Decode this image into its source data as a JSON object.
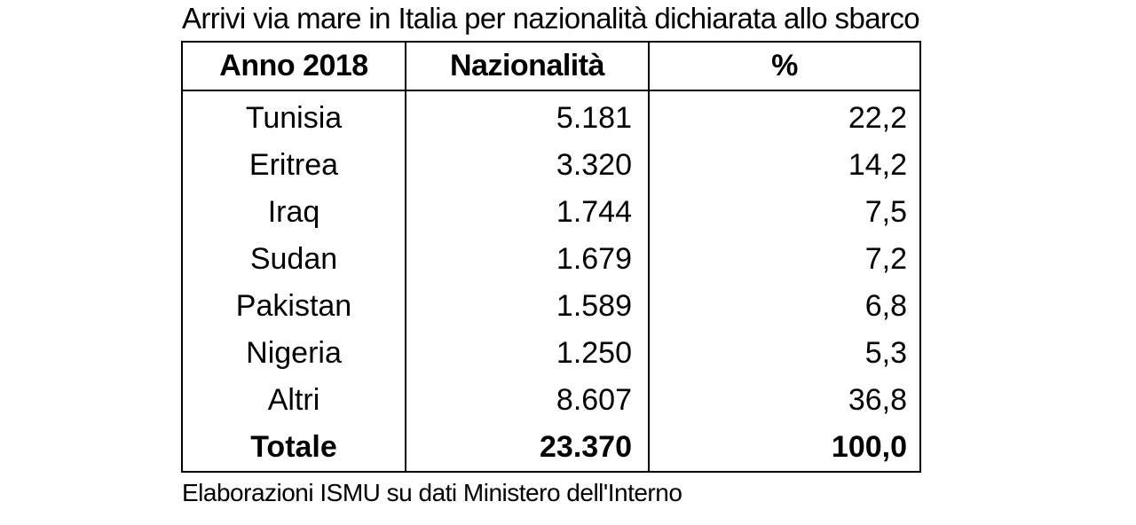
{
  "title": "Arrivi via mare in Italia per nazionalità dichiarata allo sbarco",
  "table": {
    "headers": [
      "Anno 2018",
      "Nazionalità",
      "%"
    ],
    "rows": [
      {
        "country": "Tunisia",
        "count": "5.181",
        "pct": "22,2"
      },
      {
        "country": "Eritrea",
        "count": "3.320",
        "pct": "14,2"
      },
      {
        "country": "Iraq",
        "count": "1.744",
        "pct": "7,5"
      },
      {
        "country": "Sudan",
        "count": "1.679",
        "pct": "7,2"
      },
      {
        "country": "Pakistan",
        "count": "1.589",
        "pct": "6,8"
      },
      {
        "country": "Nigeria",
        "count": "1.250",
        "pct": "5,3"
      },
      {
        "country": "Altri",
        "count": "8.607",
        "pct": "36,8"
      }
    ],
    "total": {
      "label": "Totale",
      "count": "23.370",
      "pct": "100,0"
    }
  },
  "source": "Elaborazioni ISMU su dati Ministero dell'Interno"
}
